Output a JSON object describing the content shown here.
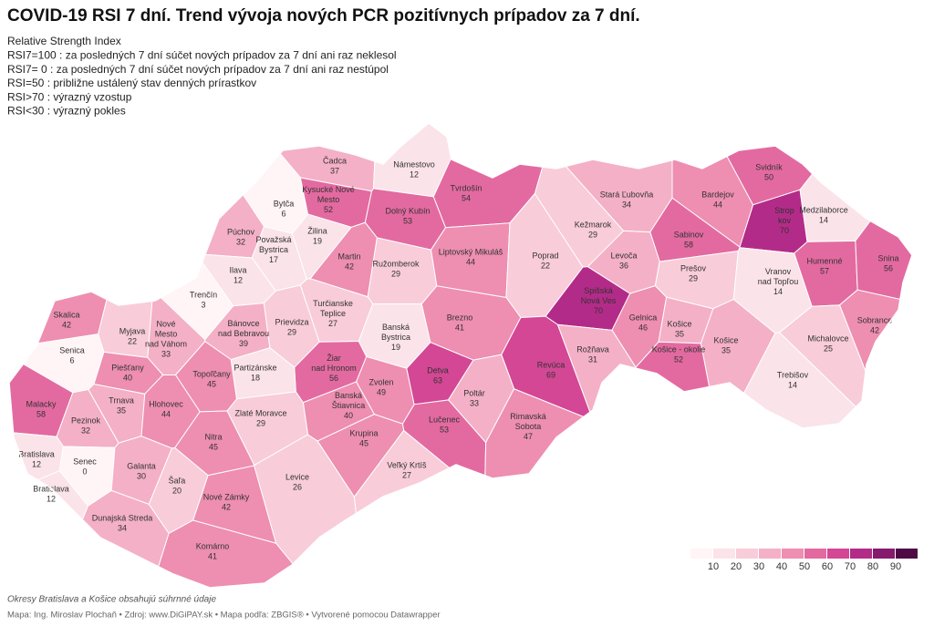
{
  "title": "COVID-19 RSI 7 dní. Trend vývoja nových PCR pozitívnych prípadov za 7 dní.",
  "description": [
    "Relative Strength Index",
    "RSI7=100 :  za posledných 7 dní súčet nových prípadov  za 7 dní  ani raz neklesol",
    "RSI7= 0 :  za posledných 7 dní súčet nových prípadov za 7 dní ani raz nestúpol",
    "RSI=50 : približne ustálený stav denných prírastkov",
    "RSI>70 : výrazný vzostup",
    "RSI<30 : výrazný pokles"
  ],
  "districts": [
    {
      "name": [
        "Čadca"
      ],
      "value": 37
    },
    {
      "name": [
        "Námestovo"
      ],
      "value": 12
    },
    {
      "name": [
        "Bytča"
      ],
      "value": 6
    },
    {
      "name": [
        "Kysucké Nové",
        "Mesto"
      ],
      "value": 52
    },
    {
      "name": [
        "Tvrdošín"
      ],
      "value": 54
    },
    {
      "name": [
        "Dolný Kubín"
      ],
      "value": 53
    },
    {
      "name": [
        "Stará Ľubovňa"
      ],
      "value": 34
    },
    {
      "name": [
        "Bardejov"
      ],
      "value": 44
    },
    {
      "name": [
        "Svidník"
      ],
      "value": 50
    },
    {
      "name": [
        "Strop",
        "kov"
      ],
      "value": 70
    },
    {
      "name": [
        "Medzilaborce"
      ],
      "value": 14
    },
    {
      "name": [
        "Púchov"
      ],
      "value": 32
    },
    {
      "name": [
        "Považská",
        "Bystrica"
      ],
      "value": 17
    },
    {
      "name": [
        "Žilina"
      ],
      "value": 19
    },
    {
      "name": [
        "Martin"
      ],
      "value": 42
    },
    {
      "name": [
        "Ružomberok"
      ],
      "value": 29
    },
    {
      "name": [
        "Liptovský Mikuláš"
      ],
      "value": 44
    },
    {
      "name": [
        "Poprad"
      ],
      "value": 22
    },
    {
      "name": [
        "Kežmarok"
      ],
      "value": 29
    },
    {
      "name": [
        "Sabinov"
      ],
      "value": 58
    },
    {
      "name": [
        "Levoča"
      ],
      "value": 36
    },
    {
      "name": [
        "Prešov"
      ],
      "value": 29
    },
    {
      "name": [
        "Humenné"
      ],
      "value": 57
    },
    {
      "name": [
        "Snina"
      ],
      "value": 56
    },
    {
      "name": [
        "Vranov",
        "nad Topľou"
      ],
      "value": 14
    },
    {
      "name": [
        "Ilava"
      ],
      "value": 12
    },
    {
      "name": [
        "Trenčín"
      ],
      "value": 3
    },
    {
      "name": [
        "Spišská",
        "Nová Ves"
      ],
      "value": 70
    },
    {
      "name": [
        "Skalica"
      ],
      "value": 42
    },
    {
      "name": [
        "Myjava"
      ],
      "value": 22
    },
    {
      "name": [
        "Nové",
        "Mesto",
        "nad Váhom"
      ],
      "value": 33
    },
    {
      "name": [
        "Bánovce",
        "nad Bebravou"
      ],
      "value": 39
    },
    {
      "name": [
        "Prievidza"
      ],
      "value": 29
    },
    {
      "name": [
        "Turčianske",
        "Teplice"
      ],
      "value": 27
    },
    {
      "name": [
        "Banská",
        "Bystrica"
      ],
      "value": 19
    },
    {
      "name": [
        "Brezno"
      ],
      "value": 41
    },
    {
      "name": [
        "Gelnica"
      ],
      "value": 46
    },
    {
      "name": [
        "Košice"
      ],
      "value": 35
    },
    {
      "name": [
        "Košice"
      ],
      "value": 35
    },
    {
      "name": [
        "Sobrance"
      ],
      "value": 42
    },
    {
      "name": [
        "Michalovce"
      ],
      "value": 25
    },
    {
      "name": [
        "Senica"
      ],
      "value": 6
    },
    {
      "name": [
        "Žiar",
        "nad Hronom"
      ],
      "value": 56
    },
    {
      "name": [
        "Rožňava"
      ],
      "value": 31
    },
    {
      "name": [
        "Revúca"
      ],
      "value": 69
    },
    {
      "name": [
        "Košice - okolie"
      ],
      "value": 52
    },
    {
      "name": [
        "Piešťany"
      ],
      "value": 40
    },
    {
      "name": [
        "Topoľčany"
      ],
      "value": 45
    },
    {
      "name": [
        "Partizánske"
      ],
      "value": 18
    },
    {
      "name": [
        "Zvolen"
      ],
      "value": 49
    },
    {
      "name": [
        "Detva"
      ],
      "value": 63
    },
    {
      "name": [
        "Trebišov"
      ],
      "value": 14
    },
    {
      "name": [
        "Malacky"
      ],
      "value": 58
    },
    {
      "name": [
        "Trnava"
      ],
      "value": 35
    },
    {
      "name": [
        "Hlohovec"
      ],
      "value": 44
    },
    {
      "name": [
        "Banská",
        "Štiavnica"
      ],
      "value": 40
    },
    {
      "name": [
        "Poltár"
      ],
      "value": 33
    },
    {
      "name": [
        "Pezinok"
      ],
      "value": 32
    },
    {
      "name": [
        "Zlaté Moravce"
      ],
      "value": 29
    },
    {
      "name": [
        "Lučenec"
      ],
      "value": 53
    },
    {
      "name": [
        "Rimavská",
        "Sobota"
      ],
      "value": 47
    },
    {
      "name": [
        "Nitra"
      ],
      "value": 45
    },
    {
      "name": [
        "Krupina"
      ],
      "value": 45
    },
    {
      "name": [
        "Bratislava"
      ],
      "value": 12
    },
    {
      "name": [
        "Senec"
      ],
      "value": 0
    },
    {
      "name": [
        "Galanta"
      ],
      "value": 30
    },
    {
      "name": [
        "Šaľa"
      ],
      "value": 20
    },
    {
      "name": [
        "Veľký Krtíš"
      ],
      "value": 27
    },
    {
      "name": [
        "Levice"
      ],
      "value": 26
    },
    {
      "name": [
        "Bratislava"
      ],
      "value": 12
    },
    {
      "name": [
        "Nové Zámky"
      ],
      "value": 42
    },
    {
      "name": [
        "Dunajská Streda"
      ],
      "value": 34
    },
    {
      "name": [
        "Komárno"
      ],
      "value": 41
    }
  ],
  "legend": {
    "ticks": [
      10,
      20,
      30,
      40,
      50,
      60,
      70,
      80,
      90
    ],
    "colors": [
      "#fff4f6",
      "#fbe3ea",
      "#f8ccd9",
      "#f4b0c6",
      "#ee8eb1",
      "#e36aa0",
      "#d34795",
      "#b32b88",
      "#861a6f",
      "#4e0a45"
    ]
  },
  "note": "Okresy Bratislava a Košice obsahujú súhrnné údaje",
  "source": "Mapa: Ing. Miroslav Plochaň • Zdroj: www.DiGiPAY.sk • Mapa podľa: ZBGIS® • Vytvorené pomocou Datawrapper"
}
